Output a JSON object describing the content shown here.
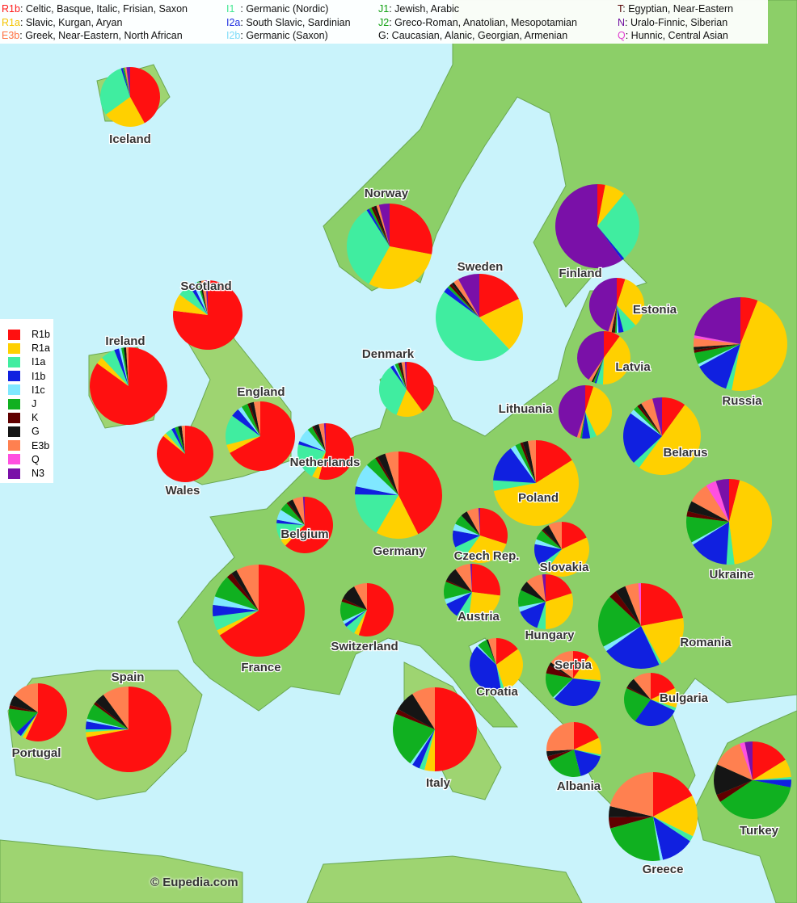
{
  "top_legend": [
    [
      {
        "code": "R1b",
        "color": "#ff1a1a",
        "desc": ": Celtic, Basque, Italic, Frisian, Saxon"
      },
      {
        "code": "R1a",
        "color": "#f5c400",
        "desc": ": Slavic, Kurgan, Aryan"
      },
      {
        "code": "E3b",
        "color": "#ff7040",
        "desc": ": Greek, Near-Eastern, North African"
      }
    ],
    [
      {
        "code": "I1",
        "color": "#40e890",
        "desc": "  : Germanic (Nordic)"
      },
      {
        "code": "I2a",
        "color": "#2030e0",
        "desc": ": South Slavic, Sardinian"
      },
      {
        "code": "I2b",
        "color": "#80dcf8",
        "desc": ": Germanic (Saxon)"
      }
    ],
    [
      {
        "code": "J1",
        "color": "#10a010",
        "desc": ": Jewish, Arabic"
      },
      {
        "code": "J2",
        "color": "#10a010",
        "desc": ": Greco-Roman, Anatolian, Mesopotamian"
      },
      {
        "code": "G",
        "color": "#111111",
        "desc": ": Caucasian, Alanic, Georgian, Armenian"
      }
    ],
    [
      {
        "code": "T",
        "color": "#550000",
        "desc": ": Egyptian, Near-Eastern"
      },
      {
        "code": "N",
        "color": "#7010a0",
        "desc": ": Uralo-Finnic, Siberian"
      },
      {
        "code": "Q",
        "color": "#e040d0",
        "desc": ": Hunnic, Central Asian"
      }
    ]
  ],
  "haplogroups": [
    {
      "code": "R1b",
      "color": "#ff1010"
    },
    {
      "code": "R1a",
      "color": "#ffd000"
    },
    {
      "code": "I1a",
      "color": "#40eda0"
    },
    {
      "code": "I1b",
      "color": "#1020e0"
    },
    {
      "code": "I1c",
      "color": "#80e8ff"
    },
    {
      "code": "J",
      "color": "#10b020"
    },
    {
      "code": "K",
      "color": "#600000"
    },
    {
      "code": "G",
      "color": "#151515"
    },
    {
      "code": "E3b",
      "color": "#ff8050"
    },
    {
      "code": "Q",
      "color": "#ff50e0"
    },
    {
      "code": "N3",
      "color": "#7a10a8"
    }
  ],
  "colors": {
    "sea": "#c9f3fb",
    "land": "#8ccf68",
    "label": "#333333"
  },
  "countries": [
    {
      "name": "Iceland",
      "shares": [
        42,
        23,
        30,
        1,
        0,
        1,
        0,
        0,
        1,
        0,
        2
      ]
    },
    {
      "name": "Norway",
      "shares": [
        28,
        30,
        33,
        1,
        0,
        1,
        1,
        1,
        1,
        0,
        4
      ]
    },
    {
      "name": "Sweden",
      "shares": [
        18,
        20,
        47,
        2,
        0,
        1,
        1,
        1,
        2,
        0,
        8
      ]
    },
    {
      "name": "Finland",
      "shares": [
        3,
        8,
        28,
        1,
        0,
        0,
        0,
        0,
        0,
        0,
        60
      ]
    },
    {
      "name": "Scotland",
      "shares": [
        77,
        8,
        6,
        2,
        2,
        1,
        0,
        1,
        2,
        0,
        1
      ]
    },
    {
      "name": "Ireland",
      "shares": [
        85,
        3,
        6,
        2,
        1,
        1,
        0,
        1,
        1,
        0,
        0
      ]
    },
    {
      "name": "Wales",
      "shares": [
        86,
        2,
        4,
        2,
        0,
        2,
        0,
        2,
        2,
        0,
        0
      ]
    },
    {
      "name": "England",
      "shares": [
        67,
        4,
        14,
        4,
        2,
        3,
        1,
        2,
        3,
        0,
        0
      ]
    },
    {
      "name": "Denmark",
      "shares": [
        40,
        16,
        34,
        2,
        1,
        2,
        1,
        1,
        2,
        0,
        1
      ]
    },
    {
      "name": "Netherlands",
      "shares": [
        54,
        4,
        21,
        2,
        8,
        3,
        1,
        3,
        3,
        0,
        1
      ]
    },
    {
      "name": "Belgium",
      "shares": [
        62,
        4,
        10,
        2,
        6,
        5,
        1,
        3,
        6,
        0,
        1
      ]
    },
    {
      "name": "Germany",
      "shares": [
        43,
        16,
        17,
        3,
        9,
        4,
        1,
        3,
        5,
        0,
        0
      ]
    },
    {
      "name": "France",
      "shares": [
        66,
        2,
        5,
        4,
        3,
        8,
        2,
        2,
        8,
        0,
        0
      ]
    },
    {
      "name": "Switzerland",
      "shares": [
        55,
        3,
        6,
        2,
        2,
        12,
        2,
        10,
        8,
        0,
        0
      ]
    },
    {
      "name": "Spain",
      "shares": [
        72,
        2,
        1,
        3,
        1,
        6,
        1,
        4,
        10,
        0,
        0
      ]
    },
    {
      "name": "Portugal",
      "shares": [
        57,
        2,
        1,
        3,
        0,
        14,
        2,
        6,
        15,
        0,
        0
      ]
    },
    {
      "name": "Italy",
      "shares": [
        50,
        4,
        2,
        3,
        1,
        21,
        2,
        8,
        9,
        0,
        0
      ]
    },
    {
      "name": "Poland",
      "shares": [
        16,
        56,
        4,
        14,
        2,
        2,
        1,
        2,
        3,
        0,
        0
      ]
    },
    {
      "name": "Czech Rep.",
      "shares": [
        30,
        30,
        8,
        10,
        4,
        6,
        0,
        4,
        7,
        0,
        1
      ]
    },
    {
      "name": "Slovakia",
      "shares": [
        18,
        42,
        5,
        13,
        3,
        6,
        1,
        4,
        8,
        0,
        0
      ]
    },
    {
      "name": "Austria",
      "shares": [
        27,
        25,
        7,
        9,
        3,
        10,
        1,
        8,
        9,
        0,
        1
      ]
    },
    {
      "name": "Hungary",
      "shares": [
        20,
        30,
        5,
        14,
        3,
        10,
        0,
        6,
        10,
        0,
        2
      ]
    },
    {
      "name": "Croatia",
      "shares": [
        15,
        30,
        2,
        40,
        1,
        6,
        0,
        1,
        5,
        0,
        0
      ]
    },
    {
      "name": "Serbia",
      "shares": [
        10,
        16,
        1,
        35,
        1,
        15,
        5,
        2,
        15,
        0,
        0
      ]
    },
    {
      "name": "Romania",
      "shares": [
        22,
        20,
        1,
        22,
        2,
        20,
        3,
        4,
        5,
        1,
        0
      ]
    },
    {
      "name": "Bulgaria",
      "shares": [
        18,
        12,
        2,
        28,
        0,
        22,
        1,
        6,
        11,
        0,
        0
      ]
    },
    {
      "name": "Albania",
      "shares": [
        18,
        10,
        1,
        17,
        0,
        22,
        3,
        3,
        26,
        0,
        0
      ]
    },
    {
      "name": "Greece",
      "shares": [
        17,
        15,
        2,
        12,
        1,
        23,
        4,
        4,
        21,
        0,
        0
      ]
    },
    {
      "name": "Turkey",
      "shares": [
        15,
        7,
        1,
        3,
        0,
        35,
        3,
        12,
        12,
        2,
        3
      ]
    },
    {
      "name": "Ukraine",
      "shares": [
        4,
        44,
        3,
        15,
        1,
        10,
        2,
        4,
        8,
        4,
        5
      ]
    },
    {
      "name": "Belarus",
      "shares": [
        10,
        50,
        3,
        22,
        2,
        2,
        1,
        1,
        5,
        0,
        4
      ]
    },
    {
      "name": "Russia",
      "shares": [
        6,
        47,
        2,
        12,
        1,
        4,
        1,
        1,
        3,
        1,
        22
      ]
    },
    {
      "name": "Estonia",
      "shares": [
        5,
        33,
        8,
        3,
        1,
        1,
        1,
        1,
        2,
        0,
        45
      ]
    },
    {
      "name": "Latvia",
      "shares": [
        10,
        40,
        4,
        1,
        0,
        1,
        0,
        1,
        2,
        0,
        40
      ]
    },
    {
      "name": "Lithuania",
      "shares": [
        5,
        38,
        4,
        5,
        0,
        1,
        0,
        0,
        2,
        0,
        45
      ]
    }
  ],
  "copyright": "© Eupedia.com"
}
